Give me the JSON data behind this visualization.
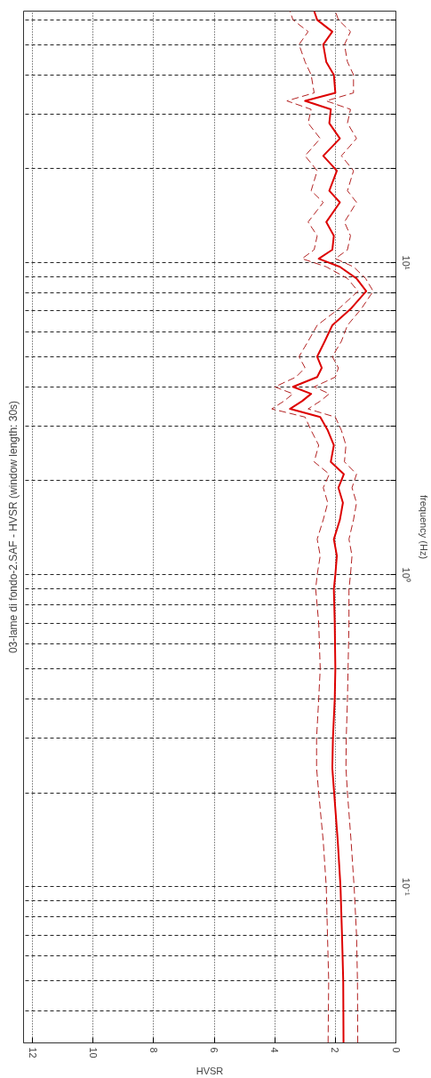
{
  "chart_data": {
    "type": "line",
    "orientation": "horizontal",
    "title": "03-lame di fondo-2.SAF - HVSR (window length: 30s)",
    "xlabel": "HVSR",
    "ylabel": "frequency (Hz)",
    "log": "y",
    "grid": true,
    "x": [
      0.0316,
      0.05,
      0.07,
      0.1,
      0.14,
      0.2,
      0.24,
      0.3,
      0.4,
      0.5,
      0.7,
      0.9,
      1.0,
      1.15,
      1.3,
      1.5,
      1.7,
      1.9,
      2.1,
      2.3,
      2.6,
      2.9,
      3.2,
      3.4,
      3.6,
      3.8,
      4.0,
      4.3,
      4.6,
      5.0,
      5.6,
      6.3,
      7.1,
      8.1,
      8.9,
      9.7,
      10.3,
      11,
      12.2,
      13.5,
      15.6,
      17,
      19.7,
      22,
      25,
      28,
      31,
      33,
      35,
      40,
      44,
      50,
      55,
      60,
      64
    ],
    "series": [
      {
        "color": "#dd0000",
        "line_style": "solid",
        "values": [
          1.73,
          1.74,
          1.78,
          1.83,
          1.92,
          2.04,
          2.1,
          2.08,
          2.02,
          2.0,
          2.02,
          2.05,
          2.0,
          1.95,
          2.05,
          1.85,
          1.75,
          1.9,
          1.72,
          2.15,
          2.05,
          2.25,
          2.5,
          3.5,
          3.1,
          2.8,
          3.4,
          2.6,
          2.45,
          2.6,
          2.35,
          2.1,
          1.5,
          0.98,
          1.3,
          1.85,
          2.55,
          2.1,
          2.05,
          2.3,
          1.85,
          2.2,
          1.95,
          2.4,
          1.85,
          2.2,
          2.15,
          3.0,
          2.0,
          2.05,
          2.3,
          2.4,
          2.1,
          2.6,
          2.7
        ]
      },
      {
        "color": "#b22222",
        "line_style": "dashed",
        "values": [
          2.24,
          2.22,
          2.26,
          2.3,
          2.4,
          2.55,
          2.62,
          2.62,
          2.55,
          2.5,
          2.55,
          2.65,
          2.6,
          2.5,
          2.6,
          2.4,
          2.25,
          2.4,
          2.2,
          2.7,
          2.55,
          2.8,
          3.0,
          4.1,
          3.7,
          3.4,
          4.0,
          3.3,
          3.0,
          3.2,
          2.9,
          2.6,
          1.9,
          1.25,
          1.6,
          2.3,
          3.1,
          2.7,
          2.6,
          2.9,
          2.4,
          2.8,
          2.6,
          3.0,
          2.5,
          2.9,
          2.8,
          3.6,
          2.7,
          2.8,
          3.0,
          3.2,
          2.9,
          3.4,
          3.5
        ]
      },
      {
        "color": "#b22222",
        "line_style": "dashed",
        "values": [
          1.26,
          1.27,
          1.3,
          1.38,
          1.48,
          1.6,
          1.65,
          1.64,
          1.6,
          1.58,
          1.55,
          1.55,
          1.5,
          1.45,
          1.55,
          1.4,
          1.3,
          1.45,
          1.3,
          1.7,
          1.65,
          1.8,
          2.0,
          2.9,
          2.5,
          2.2,
          2.7,
          2.0,
          1.9,
          2.1,
          1.8,
          1.6,
          1.15,
          0.75,
          1.0,
          1.4,
          2.0,
          1.6,
          1.5,
          1.7,
          1.3,
          1.6,
          1.4,
          1.8,
          1.3,
          1.6,
          1.5,
          2.3,
          1.4,
          1.4,
          1.6,
          1.7,
          1.5,
          1.9,
          2.0
        ]
      }
    ],
    "xlim": [
      12.3,
      0
    ],
    "xticks": [
      0,
      2,
      4,
      6,
      8,
      10,
      12
    ],
    "ylim": [
      0.0316,
      64
    ],
    "yticks": [
      {
        "value": 0.04,
        "label": null
      },
      {
        "value": 0.05,
        "label": null
      },
      {
        "value": 0.06,
        "label": null
      },
      {
        "value": 0.07,
        "label": null
      },
      {
        "value": 0.08,
        "label": null
      },
      {
        "value": 0.09,
        "label": null
      },
      {
        "value": 0.1,
        "label": "10⁻¹"
      },
      {
        "value": 0.2,
        "label": null
      },
      {
        "value": 0.3,
        "label": null
      },
      {
        "value": 0.4,
        "label": null
      },
      {
        "value": 0.5,
        "label": null
      },
      {
        "value": 0.6,
        "label": null
      },
      {
        "value": 0.7,
        "label": null
      },
      {
        "value": 0.8,
        "label": null
      },
      {
        "value": 0.9,
        "label": null
      },
      {
        "value": 1,
        "label": "10⁰"
      },
      {
        "value": 2,
        "label": null
      },
      {
        "value": 3,
        "label": null
      },
      {
        "value": 4,
        "label": null
      },
      {
        "value": 5,
        "label": null
      },
      {
        "value": 6,
        "label": null
      },
      {
        "value": 7,
        "label": null
      },
      {
        "value": 8,
        "label": null
      },
      {
        "value": 9,
        "label": null
      },
      {
        "value": 10,
        "label": "10¹"
      },
      {
        "value": 20,
        "label": null
      },
      {
        "value": 30,
        "label": null
      },
      {
        "value": 40,
        "label": null
      },
      {
        "value": 50,
        "label": null
      },
      {
        "value": 60,
        "label": null
      }
    ]
  }
}
